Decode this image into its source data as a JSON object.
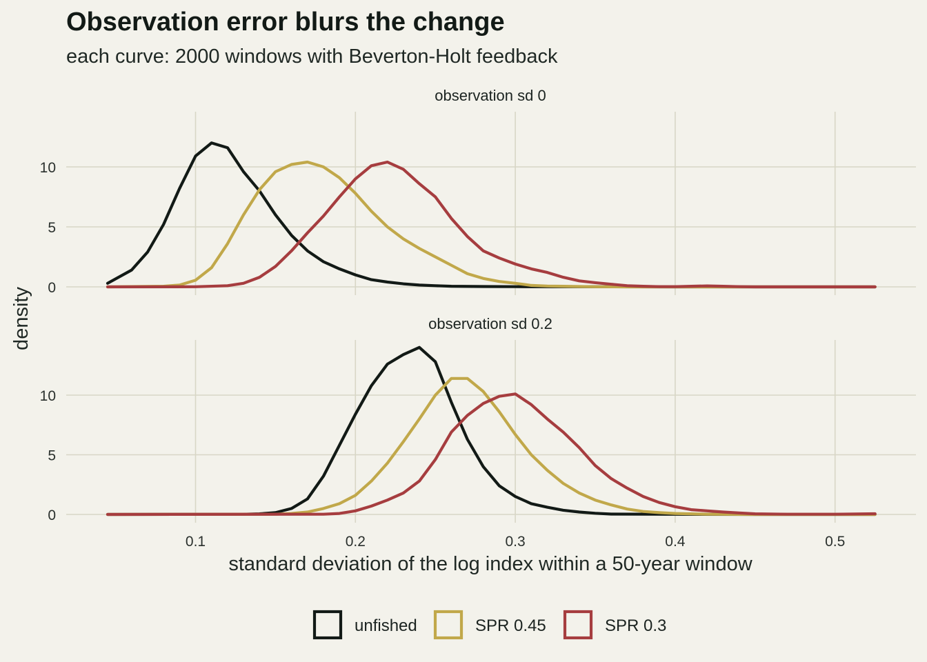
{
  "chart_data": {
    "type": "line",
    "title": "Observation error blurs the change",
    "subtitle": "each curve: 2000 windows with Beverton-Holt feedback",
    "xlabel": "standard deviation of the log index within a 50-year window",
    "ylabel": "density",
    "xlim": [
      0.02,
      0.525
    ],
    "x_ticks": [
      0.1,
      0.2,
      0.3,
      0.4,
      0.5
    ],
    "x_tick_labels": [
      "0.1",
      "0.2",
      "0.3",
      "0.4",
      "0.5"
    ],
    "y_ticks": [
      0,
      5,
      10
    ],
    "y_tick_labels": [
      "0",
      "5",
      "10"
    ],
    "grid": true,
    "legend_position": "bottom",
    "colors": {
      "unfished": "#121a16",
      "spr045": "#c1a84a",
      "spr03": "#a63d3f"
    },
    "legend": [
      {
        "label": "unfished",
        "color": "#121a16"
      },
      {
        "label": "SPR 0.45",
        "color": "#c1a84a"
      },
      {
        "label": "SPR 0.3",
        "color": "#a63d3f"
      }
    ],
    "panels": [
      {
        "label": "observation sd 0",
        "ylim": [
          0,
          14.5
        ],
        "series": [
          {
            "name": "unfished",
            "color": "#121a16",
            "x": [
              0.045,
              0.06,
              0.07,
              0.08,
              0.09,
              0.1,
              0.11,
              0.12,
              0.13,
              0.14,
              0.15,
              0.16,
              0.17,
              0.18,
              0.19,
              0.2,
              0.21,
              0.22,
              0.23,
              0.24,
              0.25,
              0.26,
              0.28,
              0.3,
              0.35,
              0.4,
              0.45,
              0.5,
              0.525
            ],
            "y": [
              0.3,
              1.4,
              2.9,
              5.2,
              8.2,
              10.9,
              12.0,
              11.6,
              9.6,
              8.0,
              6.0,
              4.3,
              3.0,
              2.1,
              1.5,
              1.0,
              0.6,
              0.4,
              0.25,
              0.15,
              0.1,
              0.05,
              0.03,
              0.02,
              0.01,
              0,
              0,
              0,
              0
            ]
          },
          {
            "name": "SPR 0.45",
            "color": "#c1a84a",
            "x": [
              0.045,
              0.08,
              0.09,
              0.1,
              0.11,
              0.12,
              0.13,
              0.14,
              0.15,
              0.16,
              0.17,
              0.18,
              0.19,
              0.2,
              0.21,
              0.22,
              0.23,
              0.24,
              0.25,
              0.26,
              0.27,
              0.28,
              0.29,
              0.3,
              0.31,
              0.32,
              0.33,
              0.34,
              0.35,
              0.37,
              0.4,
              0.45,
              0.5,
              0.525
            ],
            "y": [
              0,
              0.05,
              0.15,
              0.55,
              1.6,
              3.6,
              6.0,
              8.1,
              9.6,
              10.2,
              10.4,
              10.0,
              9.1,
              7.8,
              6.3,
              5.0,
              4.0,
              3.2,
              2.5,
              1.8,
              1.1,
              0.7,
              0.45,
              0.3,
              0.12,
              0.07,
              0.05,
              0.03,
              0.01,
              0,
              0,
              0,
              0,
              0
            ]
          },
          {
            "name": "SPR 0.3",
            "color": "#a63d3f",
            "x": [
              0.045,
              0.1,
              0.12,
              0.13,
              0.14,
              0.15,
              0.16,
              0.17,
              0.18,
              0.19,
              0.2,
              0.21,
              0.22,
              0.23,
              0.24,
              0.25,
              0.26,
              0.27,
              0.28,
              0.29,
              0.3,
              0.31,
              0.32,
              0.33,
              0.34,
              0.35,
              0.36,
              0.37,
              0.38,
              0.39,
              0.4,
              0.41,
              0.42,
              0.43,
              0.44,
              0.45,
              0.5,
              0.525
            ],
            "y": [
              0,
              0.01,
              0.1,
              0.3,
              0.8,
              1.7,
              3.0,
              4.5,
              5.9,
              7.5,
              9.0,
              10.1,
              10.4,
              9.8,
              8.6,
              7.5,
              5.7,
              4.2,
              3.0,
              2.4,
              1.9,
              1.5,
              1.2,
              0.8,
              0.5,
              0.35,
              0.22,
              0.1,
              0.05,
              0.02,
              0.02,
              0.05,
              0.08,
              0.05,
              0.02,
              0,
              0,
              0
            ]
          }
        ]
      },
      {
        "label": "observation sd 0.2",
        "ylim": [
          0,
          14.5
        ],
        "series": [
          {
            "name": "unfished",
            "color": "#121a16",
            "x": [
              0.045,
              0.13,
              0.14,
              0.15,
              0.16,
              0.17,
              0.18,
              0.19,
              0.2,
              0.21,
              0.22,
              0.23,
              0.24,
              0.25,
              0.26,
              0.27,
              0.28,
              0.29,
              0.3,
              0.31,
              0.32,
              0.33,
              0.34,
              0.35,
              0.36,
              0.4,
              0.45,
              0.5,
              0.525
            ],
            "y": [
              0,
              0.02,
              0.05,
              0.15,
              0.5,
              1.3,
              3.2,
              5.8,
              8.4,
              10.8,
              12.6,
              13.4,
              14.0,
              12.8,
              9.4,
              6.3,
              4.0,
              2.4,
              1.5,
              0.9,
              0.6,
              0.35,
              0.2,
              0.1,
              0.03,
              0.01,
              0,
              0,
              0
            ]
          },
          {
            "name": "SPR 0.45",
            "color": "#c1a84a",
            "x": [
              0.045,
              0.15,
              0.16,
              0.17,
              0.18,
              0.19,
              0.2,
              0.21,
              0.22,
              0.23,
              0.24,
              0.25,
              0.26,
              0.27,
              0.28,
              0.29,
              0.3,
              0.31,
              0.32,
              0.33,
              0.34,
              0.35,
              0.36,
              0.37,
              0.38,
              0.39,
              0.4,
              0.42,
              0.45,
              0.5,
              0.525
            ],
            "y": [
              0,
              0.02,
              0.08,
              0.2,
              0.5,
              0.9,
              1.6,
              2.8,
              4.3,
              6.1,
              8.0,
              10.0,
              11.4,
              11.4,
              10.3,
              8.6,
              6.7,
              5.0,
              3.7,
              2.6,
              1.8,
              1.2,
              0.8,
              0.45,
              0.25,
              0.15,
              0.08,
              0.02,
              0,
              0,
              0
            ]
          },
          {
            "name": "SPR 0.3",
            "color": "#a63d3f",
            "x": [
              0.045,
              0.18,
              0.19,
              0.2,
              0.21,
              0.22,
              0.23,
              0.24,
              0.25,
              0.26,
              0.27,
              0.28,
              0.29,
              0.3,
              0.31,
              0.32,
              0.33,
              0.34,
              0.35,
              0.36,
              0.37,
              0.38,
              0.39,
              0.4,
              0.41,
              0.42,
              0.43,
              0.44,
              0.45,
              0.47,
              0.5,
              0.525
            ],
            "y": [
              0,
              0.02,
              0.08,
              0.3,
              0.7,
              1.2,
              1.8,
              2.8,
              4.6,
              6.9,
              8.3,
              9.3,
              9.9,
              10.1,
              9.2,
              8.0,
              6.9,
              5.6,
              4.1,
              3.0,
              2.2,
              1.5,
              1.0,
              0.65,
              0.4,
              0.3,
              0.2,
              0.12,
              0.05,
              0.02,
              0.02,
              0.06
            ]
          }
        ]
      }
    ]
  }
}
